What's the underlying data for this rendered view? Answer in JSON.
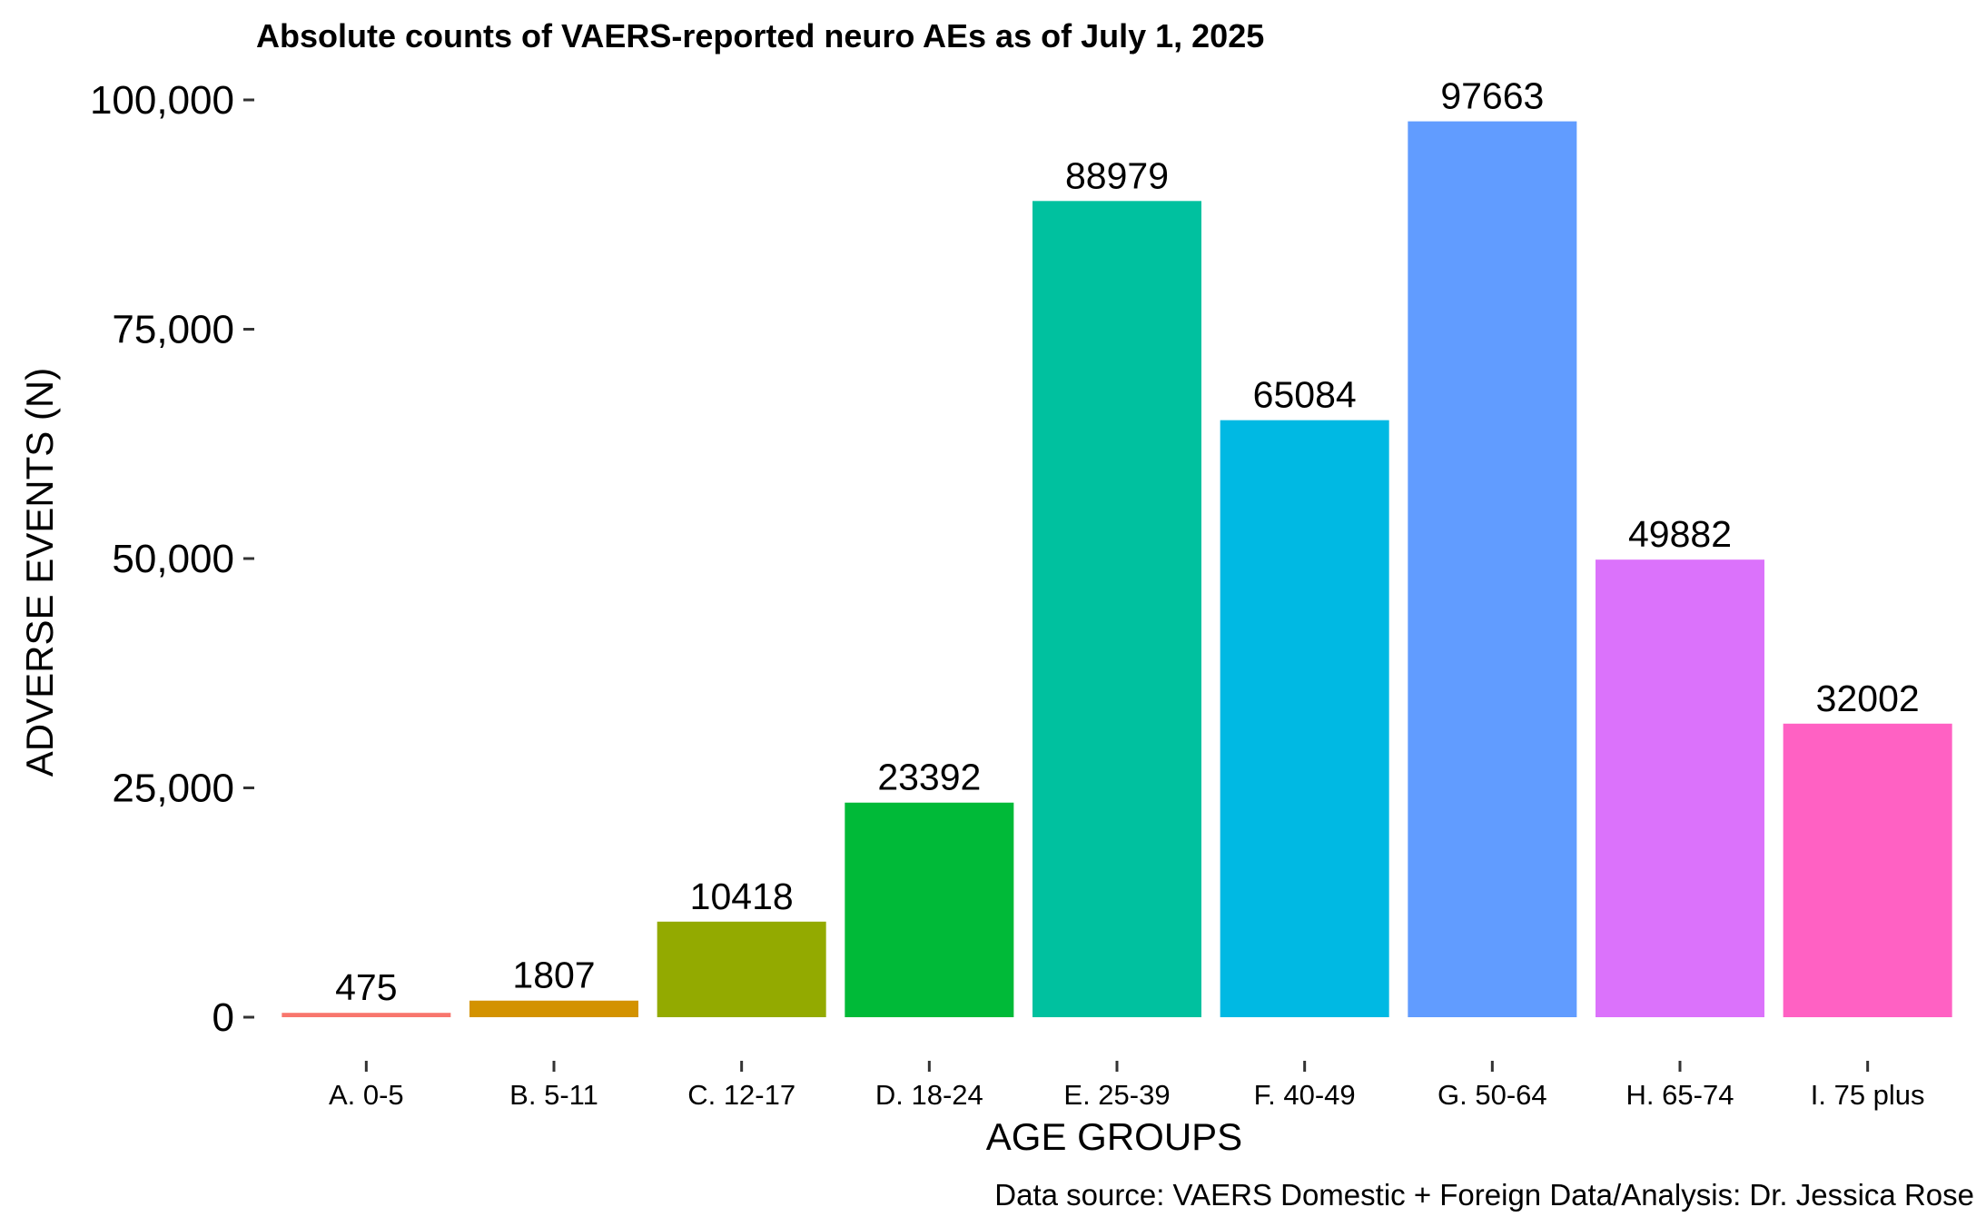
{
  "chart_data": {
    "type": "bar",
    "title": "Absolute counts of VAERS-reported neuro AEs as of July 1, 2025",
    "xlabel": "AGE GROUPS",
    "ylabel": "ADVERSE EVENTS (N)",
    "caption": "Data source: VAERS Domestic + Foreign Data/Analysis: Dr. Jessica Rose",
    "categories": [
      "A. 0-5",
      "B. 5-11",
      "C. 12-17",
      "D. 18-24",
      "E. 25-39",
      "F. 40-49",
      "G. 50-64",
      "H. 65-74",
      "I. 75 plus"
    ],
    "values": [
      475,
      1807,
      10418,
      23392,
      88979,
      65084,
      97663,
      49882,
      32002
    ],
    "data_labels": [
      "475",
      "1807",
      "10418",
      "23392",
      "88979",
      "65084",
      "97663",
      "49882",
      "32002"
    ],
    "colors": [
      "#F8766D",
      "#D39200",
      "#93AA00",
      "#00BA38",
      "#00C19F",
      "#00B9E3",
      "#619CFF",
      "#DB72FB",
      "#FF61C3"
    ],
    "y_ticks": [
      0,
      25000,
      50000,
      75000,
      100000
    ],
    "y_tick_labels": [
      "0",
      "25,000",
      "50,000",
      "75,000",
      "100,000"
    ],
    "ylim": [
      0,
      100000
    ],
    "grid": false,
    "legend": "none"
  }
}
